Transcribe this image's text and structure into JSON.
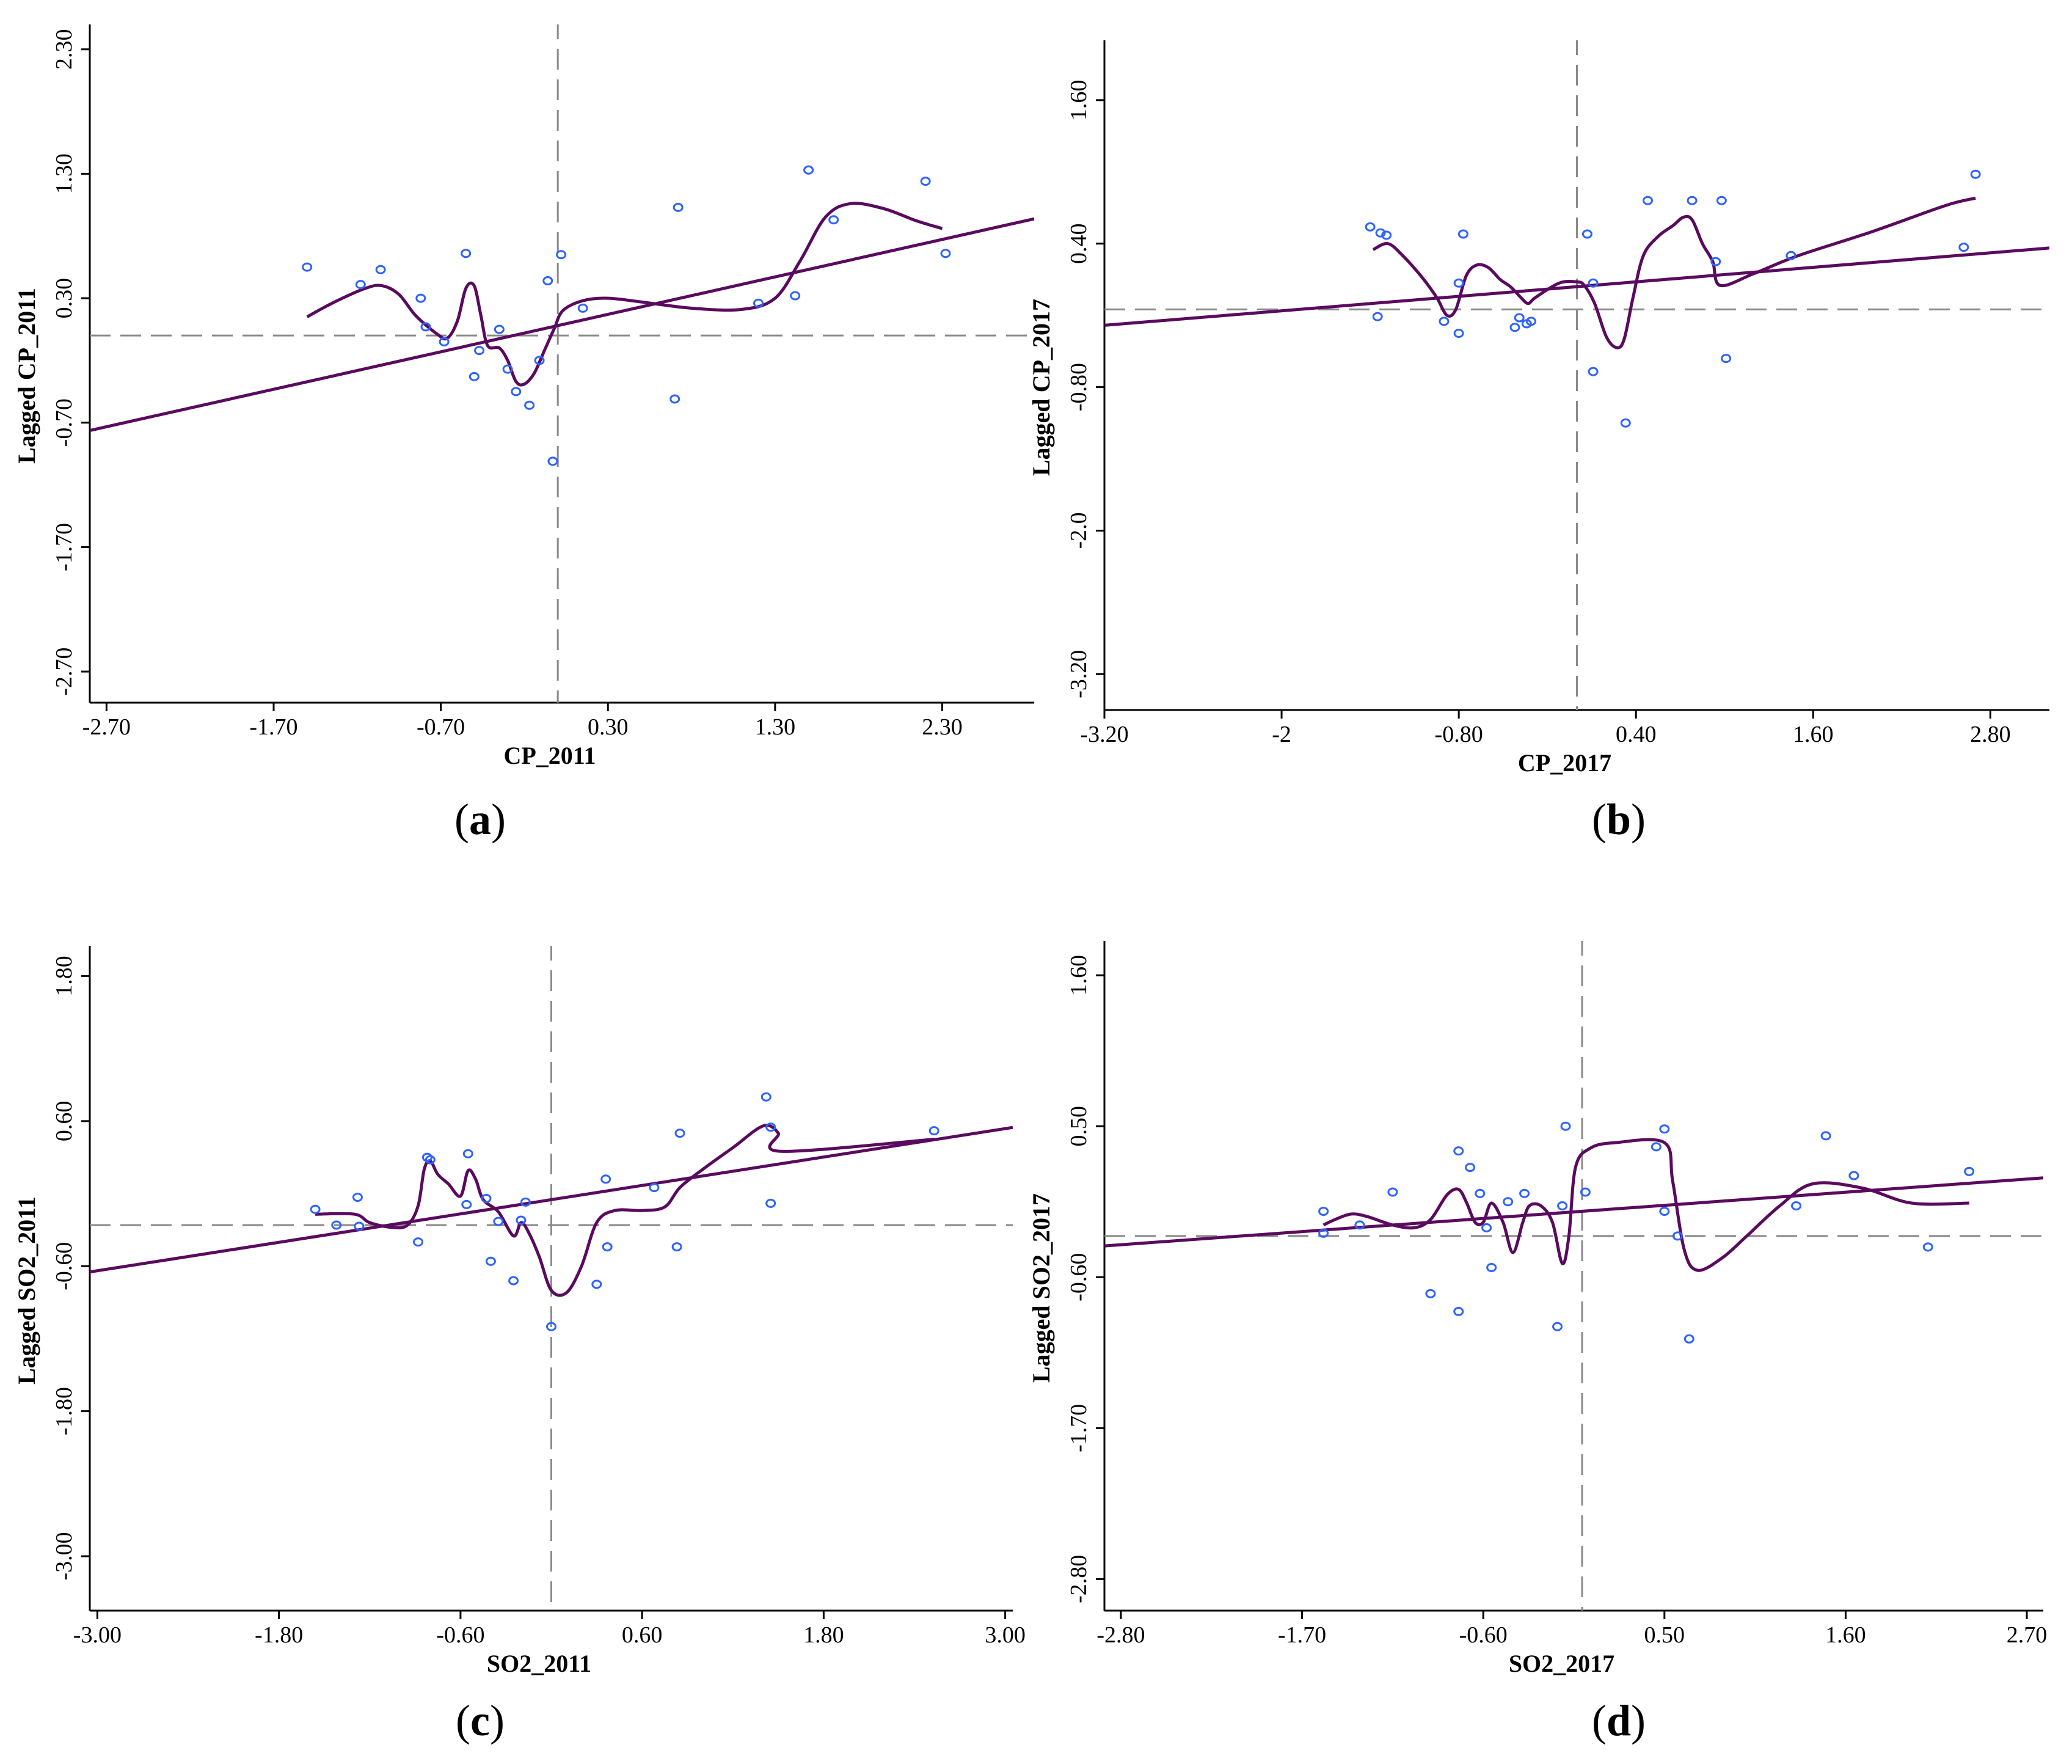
{
  "chart_data": [
    {
      "panel_label": "a",
      "type": "scatter",
      "xlabel": "CP_2011",
      "ylabel": "Lagged CP_2011",
      "xlim": [
        -2.8,
        2.85
      ],
      "ylim": [
        -2.95,
        2.5
      ],
      "x_ticks": [
        -2.7,
        -1.7,
        -0.7,
        0.3,
        1.3,
        2.3
      ],
      "x_tick_labels": [
        "-2.70",
        "-1.70",
        "-0.70",
        "0.30",
        "1.30",
        "2.30"
      ],
      "y_ticks": [
        -2.7,
        -1.7,
        -0.7,
        0.3,
        1.3,
        2.3
      ],
      "y_tick_labels": [
        "-2.70",
        "-1.70",
        "-0.70",
        "0.30",
        "1.30",
        "2.30"
      ],
      "mean_x": 0.0,
      "mean_y": 0.0,
      "points": [
        [
          -1.5,
          0.55
        ],
        [
          -1.18,
          0.41
        ],
        [
          -1.06,
          0.53
        ],
        [
          -0.82,
          0.3
        ],
        [
          -0.79,
          0.07
        ],
        [
          -0.68,
          -0.05
        ],
        [
          -0.55,
          0.66
        ],
        [
          -0.5,
          -0.33
        ],
        [
          -0.47,
          -0.12
        ],
        [
          -0.35,
          0.05
        ],
        [
          -0.3,
          -0.27
        ],
        [
          -0.25,
          -0.45
        ],
        [
          -0.17,
          -0.56
        ],
        [
          -0.11,
          -0.2
        ],
        [
          -0.06,
          0.44
        ],
        [
          -0.03,
          -1.01
        ],
        [
          0.02,
          0.65
        ],
        [
          0.15,
          0.22
        ],
        [
          0.7,
          -0.51
        ],
        [
          0.72,
          1.03
        ],
        [
          1.2,
          0.26
        ],
        [
          1.42,
          0.32
        ],
        [
          1.5,
          1.33
        ],
        [
          1.65,
          0.93
        ],
        [
          2.2,
          1.24
        ],
        [
          2.32,
          0.66
        ]
      ],
      "regression": {
        "slope": 0.301,
        "intercept": 0.08
      },
      "smooth_curve": [
        [
          -1.5,
          0.15
        ],
        [
          -1.35,
          0.26
        ],
        [
          -1.15,
          0.38
        ],
        [
          -1.05,
          0.4
        ],
        [
          -0.95,
          0.33
        ],
        [
          -0.85,
          0.16
        ],
        [
          -0.72,
          0.01
        ],
        [
          -0.66,
          -0.02
        ],
        [
          -0.6,
          0.12
        ],
        [
          -0.55,
          0.38
        ],
        [
          -0.5,
          0.4
        ],
        [
          -0.46,
          0.16
        ],
        [
          -0.42,
          -0.08
        ],
        [
          -0.35,
          -0.1
        ],
        [
          -0.3,
          -0.2
        ],
        [
          -0.25,
          -0.37
        ],
        [
          -0.2,
          -0.39
        ],
        [
          -0.14,
          -0.3
        ],
        [
          -0.08,
          -0.12
        ],
        [
          -0.02,
          0.06
        ],
        [
          0.03,
          0.2
        ],
        [
          0.15,
          0.28
        ],
        [
          0.3,
          0.3
        ],
        [
          0.5,
          0.27
        ],
        [
          0.8,
          0.22
        ],
        [
          1.1,
          0.21
        ],
        [
          1.3,
          0.3
        ],
        [
          1.45,
          0.6
        ],
        [
          1.6,
          0.95
        ],
        [
          1.75,
          1.06
        ],
        [
          1.95,
          1.02
        ],
        [
          2.15,
          0.92
        ],
        [
          2.3,
          0.86
        ]
      ]
    },
    {
      "panel_label": "b",
      "type": "scatter",
      "xlabel": "CP_2017",
      "ylabel": "Lagged CP_2017",
      "xlim": [
        -3.2,
        3.2
      ],
      "ylim": [
        -3.5,
        2.1
      ],
      "x_ticks": [
        -3.2,
        -2.0,
        -0.8,
        0.4,
        1.6,
        2.8
      ],
      "x_tick_labels": [
        "-3.20",
        "-2",
        "-0.80",
        "0.40",
        "1.60",
        "2.80"
      ],
      "y_ticks": [
        -3.2,
        -2.0,
        -0.8,
        0.4,
        1.6
      ],
      "y_tick_labels": [
        "-3.20",
        "-2.0",
        "-0.80",
        "0.40",
        "1.60"
      ],
      "mean_x": 0.0,
      "mean_y": -0.15,
      "points": [
        [
          -1.4,
          0.54
        ],
        [
          -1.33,
          0.49
        ],
        [
          -1.29,
          0.47
        ],
        [
          -1.35,
          -0.21
        ],
        [
          -0.9,
          -0.25
        ],
        [
          -0.8,
          -0.35
        ],
        [
          -0.77,
          0.48
        ],
        [
          -0.42,
          -0.3
        ],
        [
          -0.39,
          -0.22
        ],
        [
          -0.34,
          -0.27
        ],
        [
          -0.31,
          -0.25
        ],
        [
          0.07,
          0.48
        ],
        [
          0.11,
          0.07
        ],
        [
          0.11,
          -0.67
        ],
        [
          0.33,
          -1.1
        ],
        [
          0.48,
          0.76
        ],
        [
          0.78,
          0.76
        ],
        [
          0.94,
          0.25
        ],
        [
          0.98,
          0.76
        ],
        [
          1.01,
          -0.56
        ],
        [
          1.45,
          0.3
        ],
        [
          2.62,
          0.37
        ],
        [
          2.7,
          0.98
        ],
        [
          -0.8,
          0.07
        ]
      ],
      "regression": {
        "slope": 0.101,
        "intercept": 0.04
      },
      "smooth_curve": [
        [
          -1.38,
          0.35
        ],
        [
          -1.28,
          0.4
        ],
        [
          -1.18,
          0.3
        ],
        [
          -1.05,
          0.12
        ],
        [
          -0.95,
          -0.05
        ],
        [
          -0.88,
          -0.2
        ],
        [
          -0.82,
          -0.15
        ],
        [
          -0.75,
          0.13
        ],
        [
          -0.68,
          0.22
        ],
        [
          -0.6,
          0.2
        ],
        [
          -0.52,
          0.1
        ],
        [
          -0.45,
          0.04
        ],
        [
          -0.38,
          -0.05
        ],
        [
          -0.33,
          -0.1
        ],
        [
          -0.28,
          -0.05
        ],
        [
          -0.12,
          0.07
        ],
        [
          0.0,
          0.08
        ],
        [
          0.05,
          0.05
        ],
        [
          0.12,
          -0.1
        ],
        [
          0.2,
          -0.38
        ],
        [
          0.27,
          -0.47
        ],
        [
          0.32,
          -0.4
        ],
        [
          0.38,
          -0.05
        ],
        [
          0.45,
          0.3
        ],
        [
          0.55,
          0.46
        ],
        [
          0.65,
          0.55
        ],
        [
          0.72,
          0.62
        ],
        [
          0.78,
          0.6
        ],
        [
          0.85,
          0.4
        ],
        [
          0.92,
          0.25
        ],
        [
          0.97,
          0.05
        ],
        [
          1.2,
          0.15
        ],
        [
          1.5,
          0.3
        ],
        [
          2.0,
          0.5
        ],
        [
          2.5,
          0.72
        ],
        [
          2.7,
          0.78
        ]
      ]
    },
    {
      "panel_label": "c",
      "type": "scatter",
      "xlabel": "SO2_2011",
      "ylabel": "Lagged SO2_2011",
      "xlim": [
        -3.05,
        3.05
      ],
      "ylim": [
        -3.45,
        2.05
      ],
      "x_ticks": [
        -3.0,
        -1.8,
        -0.6,
        0.6,
        1.8,
        3.0
      ],
      "x_tick_labels": [
        "-3.00",
        "-1.80",
        "-0.60",
        "0.60",
        "1.80",
        "3.00"
      ],
      "y_ticks": [
        -3.0,
        -1.8,
        -0.6,
        0.6,
        1.8
      ],
      "y_tick_labels": [
        "-3.00",
        "-1.80",
        "-0.60",
        "0.60",
        "1.80"
      ],
      "mean_x": 0.0,
      "mean_y": -0.26,
      "points": [
        [
          -1.56,
          -0.13
        ],
        [
          -1.42,
          -0.26
        ],
        [
          -1.28,
          -0.03
        ],
        [
          -1.27,
          -0.27
        ],
        [
          -0.88,
          -0.4
        ],
        [
          -0.82,
          0.3
        ],
        [
          -0.8,
          0.28
        ],
        [
          -0.56,
          -0.09
        ],
        [
          -0.55,
          0.33
        ],
        [
          -0.43,
          -0.04
        ],
        [
          -0.4,
          -0.56
        ],
        [
          -0.35,
          -0.23
        ],
        [
          -0.25,
          -0.72
        ],
        [
          -0.2,
          -0.22
        ],
        [
          -0.17,
          -0.07
        ],
        [
          0.0,
          -1.1
        ],
        [
          0.3,
          -0.75
        ],
        [
          0.37,
          -0.44
        ],
        [
          0.36,
          0.12
        ],
        [
          0.68,
          0.05
        ],
        [
          0.83,
          -0.44
        ],
        [
          0.85,
          0.5
        ],
        [
          1.42,
          0.8
        ],
        [
          1.45,
          0.55
        ],
        [
          1.45,
          -0.08
        ],
        [
          2.53,
          0.52
        ]
      ],
      "regression": {
        "slope": 0.196,
        "intercept": -0.05
      },
      "smooth_curve": [
        [
          -1.56,
          -0.17
        ],
        [
          -1.3,
          -0.17
        ],
        [
          -1.2,
          -0.24
        ],
        [
          -1.05,
          -0.28
        ],
        [
          -0.95,
          -0.26
        ],
        [
          -0.88,
          -0.1
        ],
        [
          -0.84,
          0.2
        ],
        [
          -0.8,
          0.27
        ],
        [
          -0.75,
          0.16
        ],
        [
          -0.68,
          0.08
        ],
        [
          -0.6,
          -0.02
        ],
        [
          -0.55,
          0.19
        ],
        [
          -0.5,
          0.12
        ],
        [
          -0.45,
          -0.05
        ],
        [
          -0.35,
          -0.15
        ],
        [
          -0.25,
          -0.35
        ],
        [
          -0.2,
          -0.24
        ],
        [
          -0.15,
          -0.32
        ],
        [
          -0.08,
          -0.52
        ],
        [
          0.0,
          -0.8
        ],
        [
          0.1,
          -0.82
        ],
        [
          0.2,
          -0.6
        ],
        [
          0.3,
          -0.24
        ],
        [
          0.42,
          -0.14
        ],
        [
          0.6,
          -0.14
        ],
        [
          0.75,
          -0.11
        ],
        [
          0.85,
          0.05
        ],
        [
          1.0,
          0.2
        ],
        [
          1.2,
          0.38
        ],
        [
          1.4,
          0.56
        ],
        [
          1.5,
          0.5
        ],
        [
          1.52,
          0.35
        ],
        [
          2.53,
          0.45
        ]
      ]
    },
    {
      "panel_label": "d",
      "type": "scatter",
      "xlabel": "SO2_2017",
      "ylabel": "Lagged SO2_2017",
      "xlim": [
        -2.9,
        2.8
      ],
      "ylim": [
        -3.03,
        1.85
      ],
      "x_ticks": [
        -2.8,
        -1.7,
        -0.6,
        0.5,
        1.6,
        2.7
      ],
      "x_tick_labels": [
        "-2.80",
        "-1.70",
        "-0.60",
        "0.50",
        "1.60",
        "2.70"
      ],
      "y_ticks": [
        -2.8,
        -1.7,
        -0.6,
        0.5,
        1.6
      ],
      "y_tick_labels": [
        "-2.80",
        "-1.70",
        "-0.60",
        "0.50",
        "1.60"
      ],
      "mean_x": 0.0,
      "mean_y": -0.3,
      "points": [
        [
          -1.57,
          -0.28
        ],
        [
          -1.57,
          -0.12
        ],
        [
          -1.35,
          -0.22
        ],
        [
          -1.15,
          0.02
        ],
        [
          -0.92,
          -0.72
        ],
        [
          -0.75,
          -0.85
        ],
        [
          -0.75,
          0.32
        ],
        [
          -0.68,
          0.2
        ],
        [
          -0.62,
          0.01
        ],
        [
          -0.58,
          -0.24
        ],
        [
          -0.55,
          -0.53
        ],
        [
          -0.45,
          -0.05
        ],
        [
          -0.35,
          0.01
        ],
        [
          -0.15,
          -0.96
        ],
        [
          -0.12,
          -0.08
        ],
        [
          -0.1,
          0.5
        ],
        [
          0.02,
          0.02
        ],
        [
          0.45,
          0.35
        ],
        [
          0.5,
          0.48
        ],
        [
          0.5,
          -0.12
        ],
        [
          0.58,
          -0.3
        ],
        [
          0.65,
          -1.05
        ],
        [
          1.3,
          -0.08
        ],
        [
          1.48,
          0.43
        ],
        [
          1.65,
          0.14
        ],
        [
          2.1,
          -0.38
        ],
        [
          2.35,
          0.17
        ]
      ],
      "regression": {
        "slope": 0.087,
        "intercept": -0.12
      },
      "smooth_curve": [
        [
          -1.57,
          -0.22
        ],
        [
          -1.5,
          -0.18
        ],
        [
          -1.4,
          -0.14
        ],
        [
          -1.3,
          -0.16
        ],
        [
          -1.15,
          -0.22
        ],
        [
          -1.02,
          -0.24
        ],
        [
          -0.92,
          -0.18
        ],
        [
          -0.82,
          0.0
        ],
        [
          -0.75,
          0.04
        ],
        [
          -0.7,
          -0.06
        ],
        [
          -0.65,
          -0.2
        ],
        [
          -0.6,
          -0.2
        ],
        [
          -0.55,
          -0.06
        ],
        [
          -0.48,
          -0.2
        ],
        [
          -0.42,
          -0.42
        ],
        [
          -0.36,
          -0.2
        ],
        [
          -0.32,
          -0.08
        ],
        [
          -0.25,
          -0.08
        ],
        [
          -0.18,
          -0.2
        ],
        [
          -0.12,
          -0.5
        ],
        [
          -0.08,
          -0.3
        ],
        [
          -0.04,
          0.2
        ],
        [
          0.05,
          0.34
        ],
        [
          0.2,
          0.38
        ],
        [
          0.5,
          0.38
        ],
        [
          0.55,
          0.1
        ],
        [
          0.62,
          -0.4
        ],
        [
          0.7,
          -0.55
        ],
        [
          0.85,
          -0.46
        ],
        [
          1.0,
          -0.3
        ],
        [
          1.2,
          -0.08
        ],
        [
          1.4,
          0.08
        ],
        [
          1.7,
          0.05
        ],
        [
          2.0,
          -0.06
        ],
        [
          2.35,
          -0.06
        ]
      ]
    }
  ]
}
